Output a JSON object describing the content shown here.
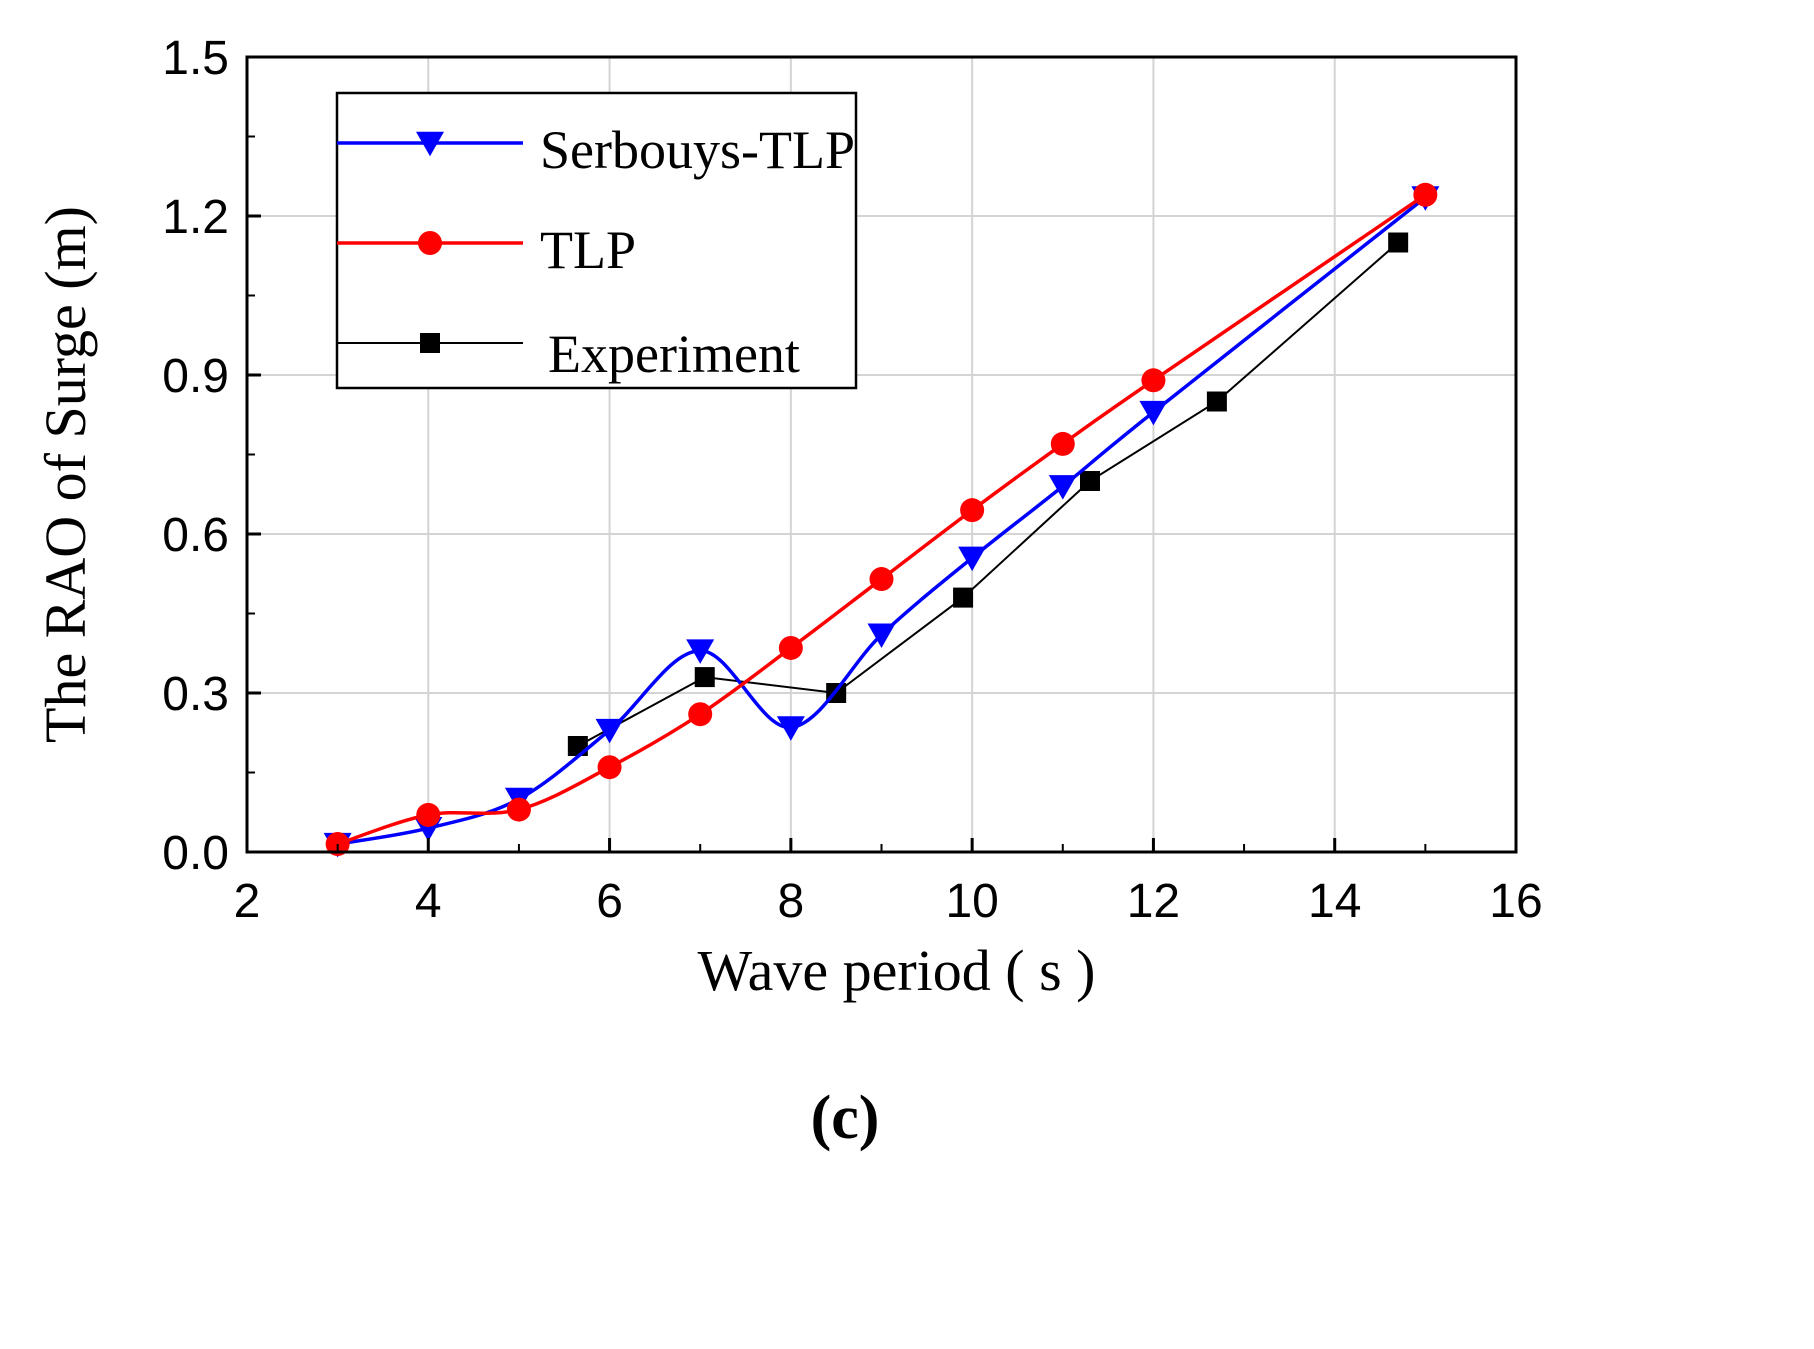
{
  "chart_data": {
    "type": "line",
    "title": "",
    "xlabel": "Wave period  ( s )",
    "ylabel": "The RAO of Surge (m)",
    "xlim": [
      2,
      16
    ],
    "ylim": [
      0.0,
      1.5
    ],
    "x_ticks": [
      "2",
      "4",
      "6",
      "8",
      "10",
      "12",
      "14",
      "16"
    ],
    "y_ticks": [
      "0.0",
      "0.3",
      "0.6",
      "0.9",
      "1.2",
      "1.5"
    ],
    "grid": true,
    "legend_position": "top-left",
    "panel_label": "(c)",
    "series": [
      {
        "name": "Serbouys-TLP",
        "color": "#0000ff",
        "marker": "triangle-down",
        "smooth": true,
        "x": [
          3,
          4,
          5,
          6,
          7,
          8,
          9,
          10,
          11,
          12,
          15
        ],
        "y": [
          0.015,
          0.045,
          0.1,
          0.23,
          0.38,
          0.235,
          0.41,
          0.555,
          0.69,
          0.83,
          1.235
        ]
      },
      {
        "name": "TLP",
        "color": "#ff0000",
        "marker": "circle",
        "smooth": true,
        "x": [
          3,
          4,
          5,
          6,
          7,
          8,
          9,
          10,
          11,
          12,
          15
        ],
        "y": [
          0.015,
          0.07,
          0.08,
          0.16,
          0.26,
          0.385,
          0.515,
          0.645,
          0.77,
          0.89,
          1.24
        ]
      },
      {
        "name": "Experiment",
        "color": "#000000",
        "marker": "square",
        "smooth": false,
        "x": [
          5.65,
          7.05,
          8.5,
          9.9,
          11.3,
          12.7,
          14.7
        ],
        "y": [
          0.2,
          0.33,
          0.3,
          0.48,
          0.7,
          0.85,
          1.15
        ]
      }
    ]
  }
}
